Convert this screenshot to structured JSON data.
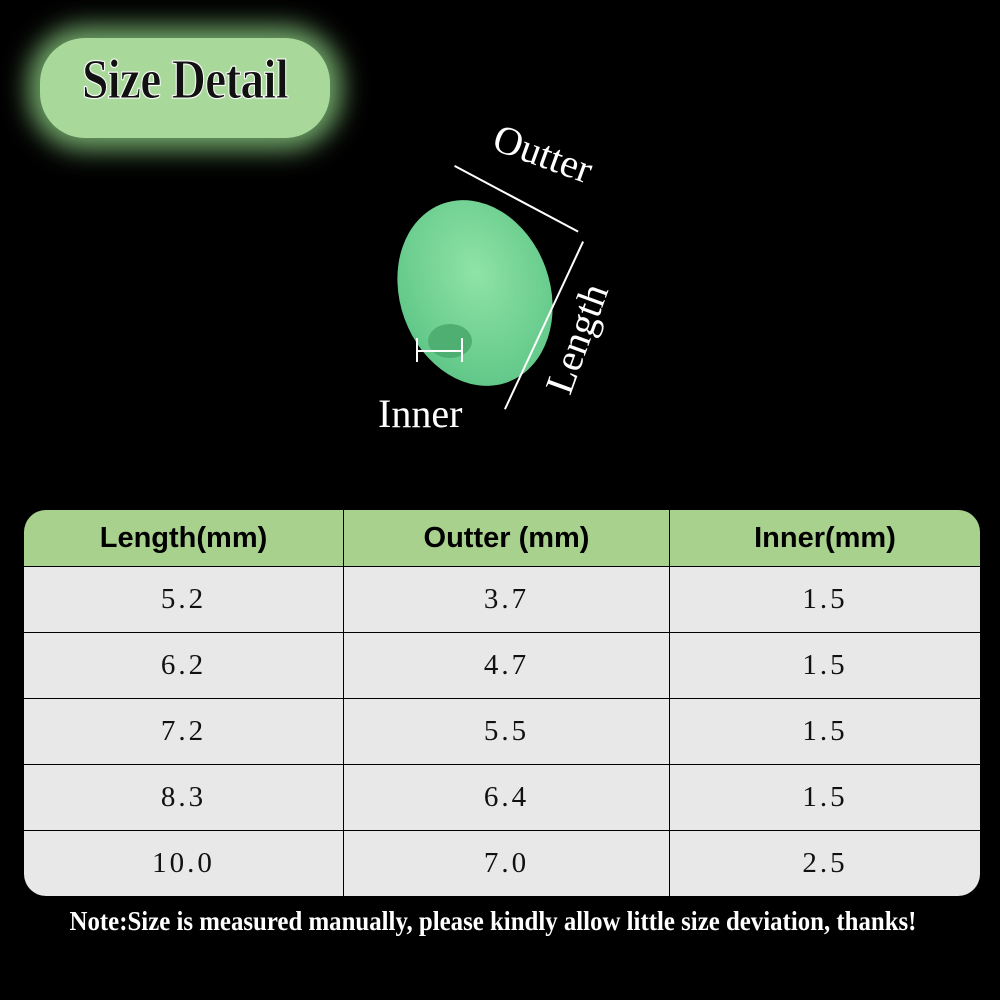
{
  "title": "Size Detail",
  "diagram": {
    "labels": {
      "outter": "Outter",
      "length": "Length",
      "inner": "Inner"
    },
    "bead_color": "#6fd294"
  },
  "table": {
    "header_color": "#a9d18e",
    "row_color": "#e8e8e8",
    "columns": [
      "Length(mm)",
      "Outter  (mm)",
      "Inner(mm)"
    ],
    "rows": [
      [
        "5.2",
        "3.7",
        "1.5"
      ],
      [
        "6.2",
        "4.7",
        "1.5"
      ],
      [
        "7.2",
        "5.5",
        "1.5"
      ],
      [
        "8.3",
        "6.4",
        "1.5"
      ],
      [
        "10.0",
        "7.0",
        "2.5"
      ]
    ]
  },
  "note": "Note:Size is measured manually, please kindly allow little size deviation, thanks!"
}
